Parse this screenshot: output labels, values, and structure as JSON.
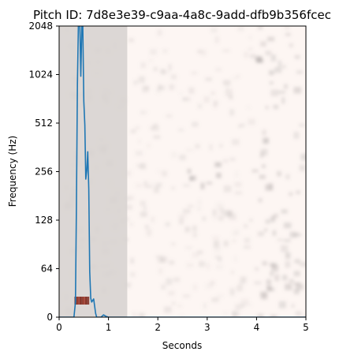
{
  "chart_data": {
    "type": "line",
    "title": "Pitch ID: 7d8e3e39-c9aa-4a8c-9add-dfb9b356fcec",
    "xlabel": "Seconds",
    "ylabel": "Frequency (Hz)",
    "xlim": [
      0,
      5
    ],
    "ylim": [
      0,
      2048
    ],
    "y_scale": "log2 (symmetric, 0 at bottom)",
    "x_ticks": [
      "0",
      "1",
      "2",
      "3",
      "4",
      "5"
    ],
    "y_ticks": [
      "0",
      "64",
      "128",
      "256",
      "512",
      "1024",
      "2048"
    ],
    "grid": false,
    "background": "spectrogram (grayscale on pale pink)",
    "shaded_region": {
      "x_start": 0.0,
      "x_end": 1.38,
      "color": "#d6d1cf"
    },
    "series": [
      {
        "color": "#1f77b4",
        "x": [
          0,
          0.3,
          0.33,
          0.35,
          0.37,
          0.39,
          0.42,
          0.44,
          0.46,
          0.48,
          0.5,
          0.52,
          0.54,
          0.56,
          0.58,
          0.6,
          0.62,
          0.64,
          0.66,
          0.7,
          0.74,
          0.76,
          0.8,
          0.85,
          0.9,
          0.95,
          1.0,
          1.05,
          1.1,
          2.5,
          4.0,
          5.0
        ],
        "y": [
          0,
          0,
          20,
          150,
          900,
          2048,
          2048,
          1000,
          2048,
          2048,
          700,
          500,
          230,
          260,
          340,
          200,
          60,
          25,
          20,
          24,
          5,
          0,
          0,
          0,
          3,
          1,
          0,
          0,
          0,
          0,
          0,
          0
        ]
      }
    ]
  }
}
